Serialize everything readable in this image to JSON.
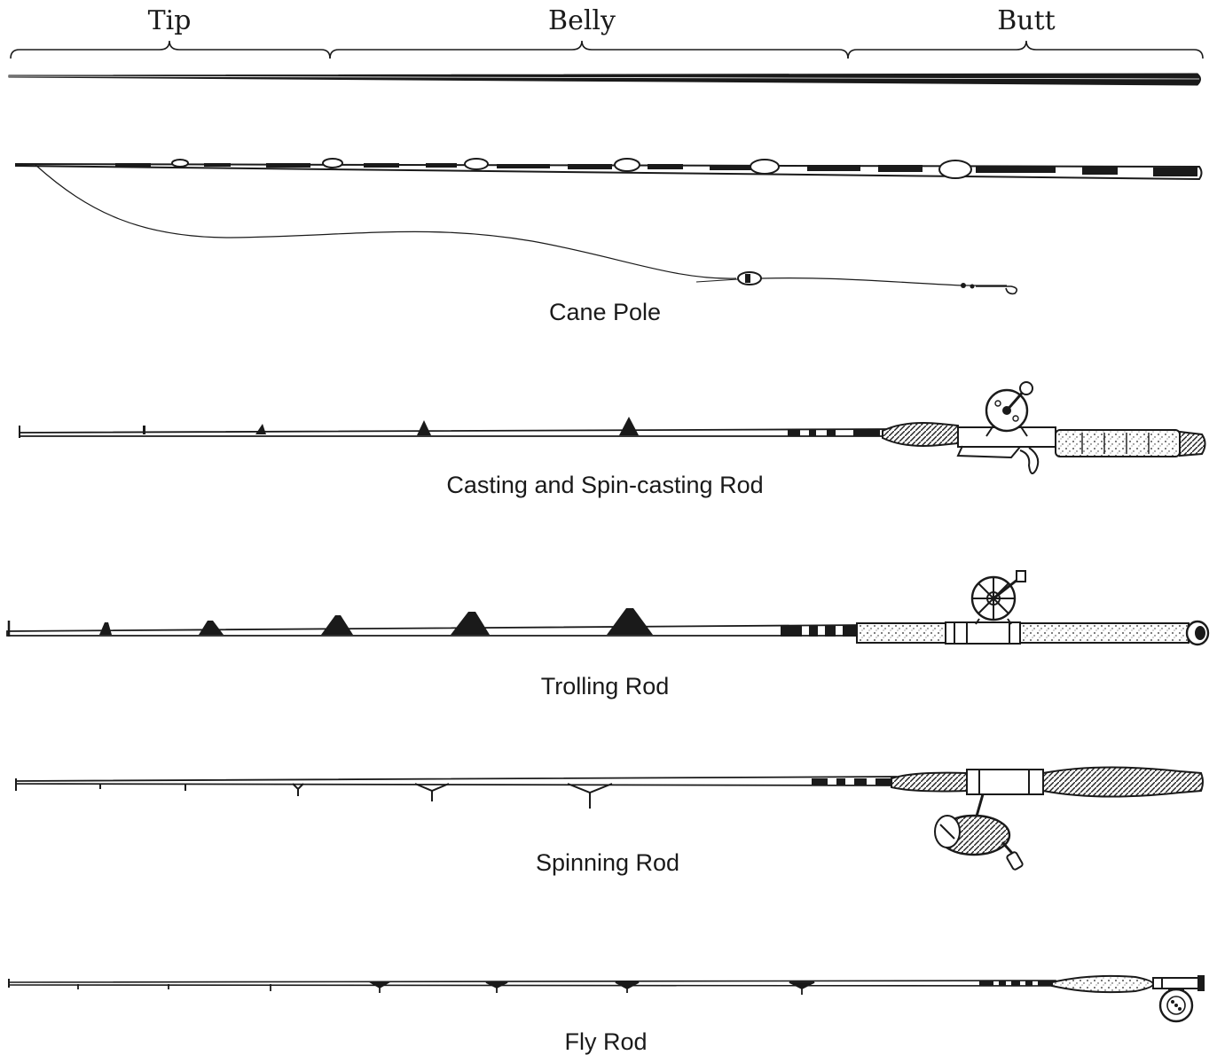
{
  "sections": {
    "tip": "Tip",
    "belly": "Belly",
    "butt": "Butt"
  },
  "rods": [
    {
      "key": "cane-pole",
      "label": "Cane Pole"
    },
    {
      "key": "casting",
      "label": "Casting and Spin-casting Rod"
    },
    {
      "key": "trolling",
      "label": "Trolling Rod"
    },
    {
      "key": "spinning",
      "label": "Spinning Rod"
    },
    {
      "key": "fly",
      "label": "Fly Rod"
    }
  ],
  "colors": {
    "ink": "#1a1a1a",
    "paper": "#ffffff"
  }
}
